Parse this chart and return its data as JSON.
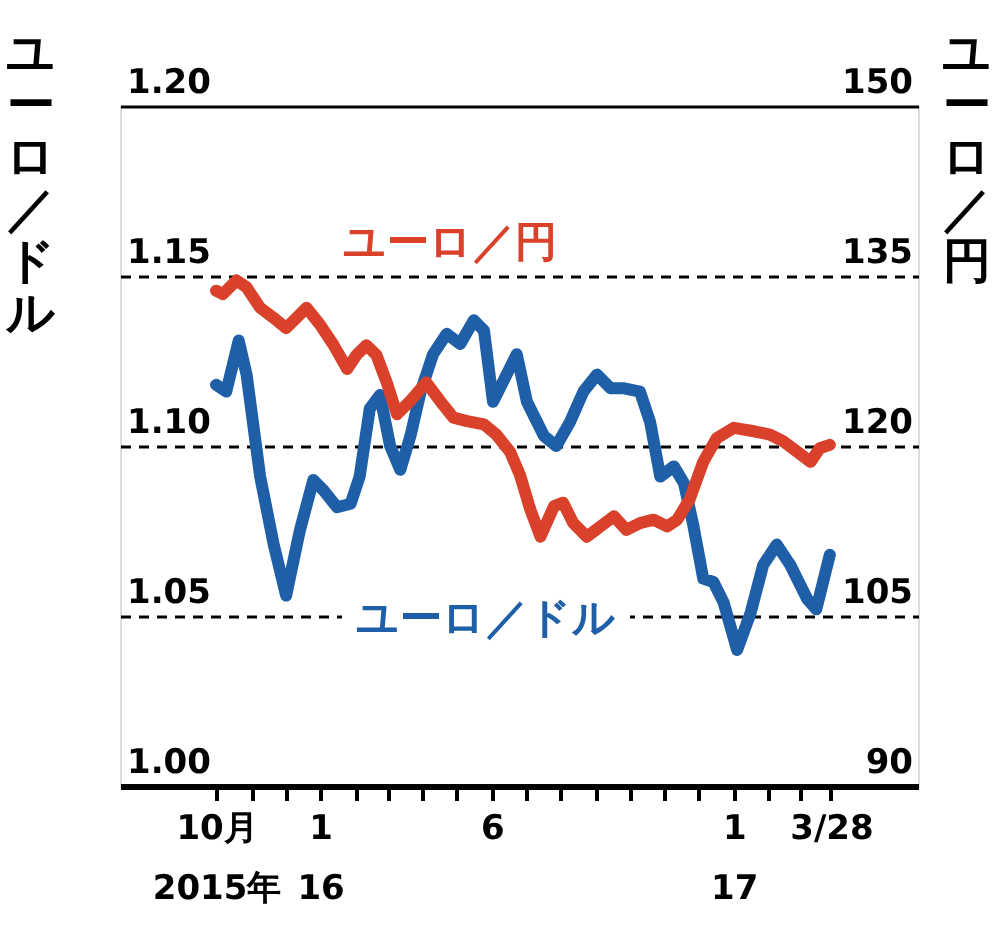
{
  "chart_data": {
    "type": "line",
    "ylabel": "ユーロ／ドル",
    "y2label": "ユーロ／円",
    "xlim": [
      "2015-07-08",
      "2017-06-13"
    ],
    "xticks": [
      {
        "value": "2015-10-01",
        "label": "10月\n2015年"
      },
      {
        "value": "2015-11-01",
        "label": null
      },
      {
        "value": "2015-12-01",
        "label": null
      },
      {
        "value": "2016-01-01",
        "label": "1\n16"
      },
      {
        "value": "2016-02-01",
        "label": null
      },
      {
        "value": "2016-03-01",
        "label": null
      },
      {
        "value": "2016-04-01",
        "label": null
      },
      {
        "value": "2016-05-01",
        "label": null
      },
      {
        "value": "2016-06-01",
        "label": "6"
      },
      {
        "value": "2016-07-01",
        "label": null
      },
      {
        "value": "2016-08-01",
        "label": null
      },
      {
        "value": "2016-09-01",
        "label": null
      },
      {
        "value": "2016-10-01",
        "label": null
      },
      {
        "value": "2016-11-01",
        "label": null
      },
      {
        "value": "2016-12-01",
        "label": null
      },
      {
        "value": "2017-01-01",
        "label": "1\n17"
      },
      {
        "value": "2017-02-01",
        "label": null
      },
      {
        "value": "2017-03-01",
        "label": null
      },
      {
        "value": "2017-03-28",
        "label": "3/28"
      }
    ],
    "ylim": [
      1.0,
      1.2
    ],
    "yticks": [
      {
        "value": 1.0,
        "label": "1.00"
      },
      1.05,
      {
        "value": 1.1,
        "label": "1.10"
      },
      1.15,
      {
        "value": 1.2,
        "label": "1.20"
      }
    ],
    "y2lim": [
      90,
      150
    ],
    "y2ticks": [
      90,
      105,
      120,
      135,
      150
    ],
    "grid": "y",
    "line_style": "solid",
    "marker": "none",
    "series": [
      {
        "name": "ユーロ／ドル",
        "color": "#1f5fa8",
        "x": [
          "2015-10-01",
          "2015-10-10",
          "2015-10-21",
          "2015-10-28",
          "2015-11-09",
          "2015-11-21",
          "2015-12-02",
          "2015-12-14",
          "2015-12-26",
          "2016-01-04",
          "2016-01-16",
          "2016-01-28",
          "2016-02-05",
          "2016-02-14",
          "2016-02-23",
          "2016-03-03",
          "2016-03-12",
          "2016-03-21",
          "2016-03-30",
          "2016-04-10",
          "2016-04-22",
          "2016-05-04",
          "2016-05-16",
          "2016-05-25",
          "2016-06-02",
          "2016-06-14",
          "2016-06-23",
          "2016-07-02",
          "2016-07-17",
          "2016-07-28",
          "2016-08-09",
          "2016-08-21",
          "2016-09-02",
          "2016-09-14",
          "2016-09-25",
          "2016-10-10",
          "2016-10-19",
          "2016-10-28",
          "2016-11-09",
          "2016-11-18",
          "2016-11-26",
          "2016-12-05",
          "2016-12-14",
          "2016-12-23",
          "2017-01-04",
          "2017-01-16",
          "2017-01-27",
          "2017-02-08",
          "2017-02-20",
          "2017-03-07",
          "2017-03-15",
          "2017-03-27"
        ],
        "values": [
          1.118,
          1.116,
          1.131,
          1.121,
          1.091,
          1.071,
          1.056,
          1.075,
          1.09,
          1.087,
          1.082,
          1.083,
          1.091,
          1.111,
          1.115,
          1.1,
          1.093,
          1.103,
          1.116,
          1.127,
          1.133,
          1.13,
          1.137,
          1.134,
          1.113,
          1.121,
          1.127,
          1.113,
          1.103,
          1.1,
          1.107,
          1.116,
          1.121,
          1.117,
          1.117,
          1.116,
          1.107,
          1.091,
          1.094,
          1.089,
          1.077,
          1.061,
          1.06,
          1.054,
          1.04,
          1.051,
          1.065,
          1.071,
          1.065,
          1.055,
          1.052,
          1.068
        ]
      },
      {
        "name": "ユーロ／円",
        "color": "#d9412a",
        "axis": "y2",
        "x": [
          "2015-10-01",
          "2015-10-07",
          "2015-10-19",
          "2015-10-28",
          "2015-11-09",
          "2015-11-21",
          "2015-12-02",
          "2015-12-11",
          "2015-12-20",
          "2016-01-01",
          "2016-01-13",
          "2016-01-25",
          "2016-02-02",
          "2016-02-11",
          "2016-02-20",
          "2016-02-29",
          "2016-03-09",
          "2016-03-21",
          "2016-04-04",
          "2016-04-16",
          "2016-04-28",
          "2016-05-10",
          "2016-05-25",
          "2016-06-05",
          "2016-06-17",
          "2016-06-26",
          "2016-07-05",
          "2016-07-14",
          "2016-07-26",
          "2016-08-03",
          "2016-08-12",
          "2016-08-24",
          "2016-09-05",
          "2016-09-17",
          "2016-09-28",
          "2016-10-10",
          "2016-10-22",
          "2016-11-03",
          "2016-11-12",
          "2016-11-23",
          "2016-12-05",
          "2016-12-17",
          "2017-01-01",
          "2017-01-19",
          "2017-02-02",
          "2017-02-14",
          "2017-02-26",
          "2017-03-10",
          "2017-03-18",
          "2017-03-27"
        ],
        "values": [
          133.7,
          133.4,
          134.6,
          134.0,
          132.2,
          131.3,
          130.4,
          131.3,
          132.2,
          130.7,
          128.9,
          126.8,
          128.0,
          128.9,
          128.0,
          125.6,
          122.8,
          124.0,
          125.6,
          124.0,
          122.5,
          122.2,
          121.9,
          121.0,
          119.5,
          117.4,
          114.4,
          112.0,
          114.7,
          115.0,
          113.2,
          112.0,
          112.9,
          113.8,
          112.6,
          113.2,
          113.5,
          112.9,
          113.5,
          115.3,
          118.6,
          120.7,
          121.6,
          121.3,
          121.0,
          120.4,
          119.5,
          118.6,
          119.8,
          120.1
        ]
      }
    ]
  }
}
